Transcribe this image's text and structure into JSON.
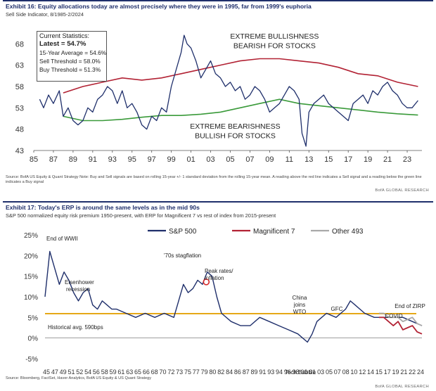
{
  "chart_data": [
    {
      "type": "line",
      "title": "Exhibit 16: Equity allocations today are almost precisely where they were in 1995, far from 1999's euphoria",
      "subtitle": "Sell Side Indicator, 8/1985-2/2024",
      "source": "Source: BofA US Equity & Quant Strategy Note: Buy and Sell signals are based on rolling 15-year +/- 1 standard deviation from the rolling 15-year mean. A reading above the red line indicates a Sell signal and a reading below the green line indicates a Buy signal",
      "credit": "BofA GLOBAL RESEARCH",
      "x_ticks": [
        "85",
        "87",
        "89",
        "91",
        "93",
        "95",
        "97",
        "99",
        "01",
        "03",
        "05",
        "07",
        "09",
        "11",
        "13",
        "15",
        "17",
        "19",
        "21",
        "23"
      ],
      "y_ticks": [
        43,
        48,
        53,
        58,
        63,
        68
      ],
      "ylim": [
        43,
        72
      ],
      "xlim": [
        1985,
        2024.5
      ],
      "grid": false,
      "annotations": [
        "EXTREME BULLISHNESS",
        "BEARISH FOR STOCKS",
        "EXTREME BEARISHNESS",
        "BULLISH FOR STOCKS"
      ],
      "stats": {
        "heading": "Current Statistics:",
        "latest": "Latest = 54.7%",
        "avg": "15-Year Average = 54.6%",
        "sell": "Sell Threshold = 58.0%",
        "buy": "Buy Threshold = 51.3%"
      },
      "series": [
        {
          "color": "#1f2f6b",
          "x": [
            1985.6,
            1986,
            1986.5,
            1987,
            1987.6,
            1988,
            1988.5,
            1989,
            1989.5,
            1990,
            1990.5,
            1991,
            1991.5,
            1992,
            1992.5,
            1993,
            1993.5,
            1994,
            1994.5,
            1995,
            1995.5,
            1996,
            1996.5,
            1997,
            1997.5,
            1998,
            1998.5,
            1999,
            1999.5,
            2000,
            2000.3,
            2000.6,
            2001,
            2001.5,
            2002,
            2002.5,
            2003,
            2003.5,
            2004,
            2004.5,
            2005,
            2005.5,
            2006,
            2006.5,
            2007,
            2007.5,
            2008,
            2008.5,
            2009,
            2009.5,
            2010,
            2010.5,
            2011,
            2011.5,
            2012,
            2012.3,
            2012.7,
            2013,
            2013.5,
            2014,
            2014.5,
            2015,
            2015.5,
            2016,
            2016.5,
            2017,
            2017.5,
            2018,
            2018.5,
            2019,
            2019.5,
            2020,
            2020.5,
            2021,
            2021.5,
            2022,
            2022.5,
            2023,
            2023.5,
            2024.1
          ],
          "y": [
            55,
            53,
            56,
            54,
            57,
            51,
            53,
            50,
            49,
            50,
            53,
            52,
            55,
            56,
            58,
            57,
            54,
            57,
            53,
            54,
            52,
            49,
            48,
            51,
            50,
            53,
            52,
            58,
            62,
            66,
            70,
            68,
            67,
            64,
            60,
            62,
            64,
            61,
            60,
            58,
            59,
            57,
            58,
            55,
            56,
            58,
            57,
            55,
            52,
            53,
            54,
            56,
            58,
            57,
            55,
            47,
            44,
            52,
            54,
            55,
            56,
            54,
            53,
            52,
            51,
            50,
            54,
            55,
            56,
            54,
            57,
            56,
            58,
            59,
            57,
            56,
            54,
            53,
            53,
            54.7
          ]
        },
        {
          "color": "#b22234",
          "x": [
            1988,
            1990,
            1992,
            1994,
            1996,
            1998,
            2000,
            2002,
            2004,
            2006,
            2008,
            2010,
            2012,
            2014,
            2016,
            2018,
            2020,
            2022,
            2024.1
          ],
          "y": [
            56.5,
            58,
            59,
            60,
            59.5,
            60,
            61,
            62,
            63,
            64,
            64.5,
            64.5,
            64,
            63.5,
            62.5,
            61,
            60.5,
            59,
            58
          ]
        },
        {
          "color": "#3a9a3a",
          "x": [
            1988,
            1990,
            1992,
            1994,
            1996,
            1998,
            2000,
            2002,
            2004,
            2006,
            2008,
            2010,
            2012,
            2014,
            2016,
            2018,
            2020,
            2022,
            2024.1
          ],
          "y": [
            51,
            50,
            50,
            50.3,
            50.8,
            51.2,
            51.2,
            51.5,
            52,
            53,
            54,
            55,
            54,
            53.5,
            53,
            52.5,
            52,
            51.6,
            51.3
          ]
        }
      ]
    },
    {
      "type": "line",
      "title": "Exhibit 17: Today's ERP is around the same levels as in the mid 90s",
      "subtitle": "S&P 500 normalized equity risk premium 1950-present, with ERP for Magnificent 7 vs rest of index from 2015-present",
      "source": "Source: Bloomberg, FactSet, Haver Analytics, BofA US Equity & US Quant Strategy",
      "credit": "BofA GLOBAL RESEARCH",
      "x_ticks": [
        "45",
        "47",
        "49",
        "51",
        "52",
        "54",
        "56",
        "58",
        "59",
        "61",
        "63",
        "65",
        "66",
        "68",
        "70",
        "72",
        "73",
        "75",
        "77",
        "79",
        "80",
        "82",
        "84",
        "86",
        "87",
        "89",
        "91",
        "93",
        "94",
        "96",
        "98",
        "00",
        "01",
        "03",
        "05",
        "07",
        "08",
        "10",
        "12",
        "14",
        "15",
        "17",
        "19",
        "21",
        "22",
        "24"
      ],
      "y_ticks": [
        "25%",
        "20%",
        "15%",
        "10%",
        "5%",
        "0%",
        "-5%"
      ],
      "ylim": [
        -5,
        25
      ],
      "xlim": [
        1945,
        2024
      ],
      "grid": false,
      "annotations": [
        "End of WWII",
        "Eisenhower recession",
        "'70s stagflation",
        "Peak rates/ inflation",
        "China joins WTO",
        "GFC",
        "COVID",
        "End of ZIRP",
        "Tech Bubble",
        "Historical avg. 590bps"
      ],
      "historical_avg": 5.9,
      "legend": [
        {
          "name": "S&P 500",
          "color": "#1f2f6b"
        },
        {
          "name": "Magnificent 7",
          "color": "#b22234"
        },
        {
          "name": "Other 493",
          "color": "#a9a9a9"
        }
      ],
      "legend_position": "top",
      "series": [
        {
          "name": "S&P 500",
          "color": "#1f2f6b",
          "x": [
            1945,
            1946,
            1947,
            1948,
            1949,
            1950,
            1951,
            1952,
            1953,
            1954,
            1955,
            1956,
            1957,
            1958,
            1959,
            1960,
            1962,
            1964,
            1966,
            1968,
            1970,
            1972,
            1973,
            1974,
            1975,
            1976,
            1977,
            1978,
            1979,
            1980,
            1981,
            1982,
            1984,
            1986,
            1988,
            1990,
            1992,
            1994,
            1996,
            1998,
            1999,
            2000,
            2001,
            2002,
            2003,
            2004,
            2006,
            2008,
            2009,
            2010,
            2012,
            2014,
            2016,
            2018,
            2020,
            2022,
            2024
          ],
          "y": [
            10,
            21,
            17,
            13,
            16,
            14,
            11,
            9,
            11,
            12,
            8,
            7,
            9,
            8,
            7,
            7,
            6,
            5,
            6,
            5,
            6,
            5,
            9,
            13,
            11,
            12,
            14,
            13,
            16,
            15,
            10,
            6,
            4,
            3,
            3,
            5,
            4,
            3,
            2,
            1,
            0,
            -1,
            1,
            4,
            5,
            6,
            5,
            7,
            9,
            8,
            6,
            5,
            5,
            5,
            5,
            4,
            3
          ]
        },
        {
          "name": "Magnificent 7",
          "color": "#b22234",
          "x": [
            2015,
            2016,
            2017,
            2018,
            2019,
            2020,
            2021,
            2022,
            2023,
            2024
          ],
          "y": [
            5,
            5,
            4,
            3,
            4,
            2,
            2.5,
            3,
            1.5,
            1
          ]
        },
        {
          "name": "Other 493",
          "color": "#a9a9a9",
          "x": [
            2015,
            2016,
            2017,
            2018,
            2019,
            2020,
            2021,
            2022,
            2023,
            2024
          ],
          "y": [
            6,
            6,
            5,
            5,
            5,
            4,
            4.5,
            5,
            3.5,
            3
          ]
        }
      ]
    }
  ]
}
